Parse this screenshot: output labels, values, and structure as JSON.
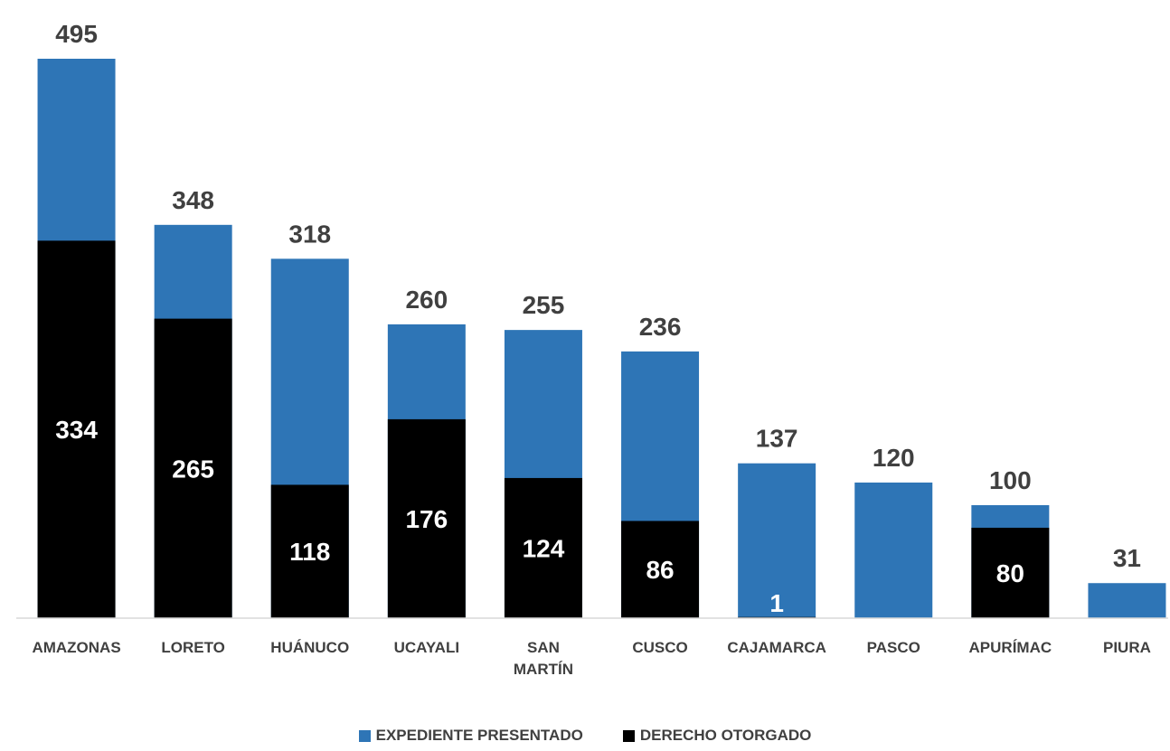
{
  "chart_data": {
    "type": "bar",
    "stacked": true,
    "categories": [
      "AMAZONAS",
      "LORETO",
      "HUÁNUCO",
      "UCAYALI",
      "SAN MARTÍN",
      "CUSCO",
      "CAJAMARCA",
      "PASCO",
      "APURÍMAC",
      "PIURA"
    ],
    "category_lines": [
      [
        "AMAZONAS"
      ],
      [
        "LORETO"
      ],
      [
        "HUÁNUCO"
      ],
      [
        "UCAYALI"
      ],
      [
        "SAN",
        "MARTÍN"
      ],
      [
        "CUSCO"
      ],
      [
        "CAJAMARCA"
      ],
      [
        "PASCO"
      ],
      [
        "APURÍMAC"
      ],
      [
        "PIURA"
      ]
    ],
    "series": [
      {
        "name": "EXPEDIENTE PRESENTADO",
        "color": "#2E75B6",
        "totals": [
          495,
          348,
          318,
          260,
          255,
          236,
          137,
          120,
          100,
          31
        ]
      },
      {
        "name": "DERECHO OTORGADO",
        "color": "#000000",
        "values": [
          334,
          265,
          118,
          176,
          124,
          86,
          1,
          0,
          80,
          0
        ]
      }
    ],
    "ylim": [
      0,
      495
    ],
    "grid": false,
    "legend_position": "bottom"
  }
}
